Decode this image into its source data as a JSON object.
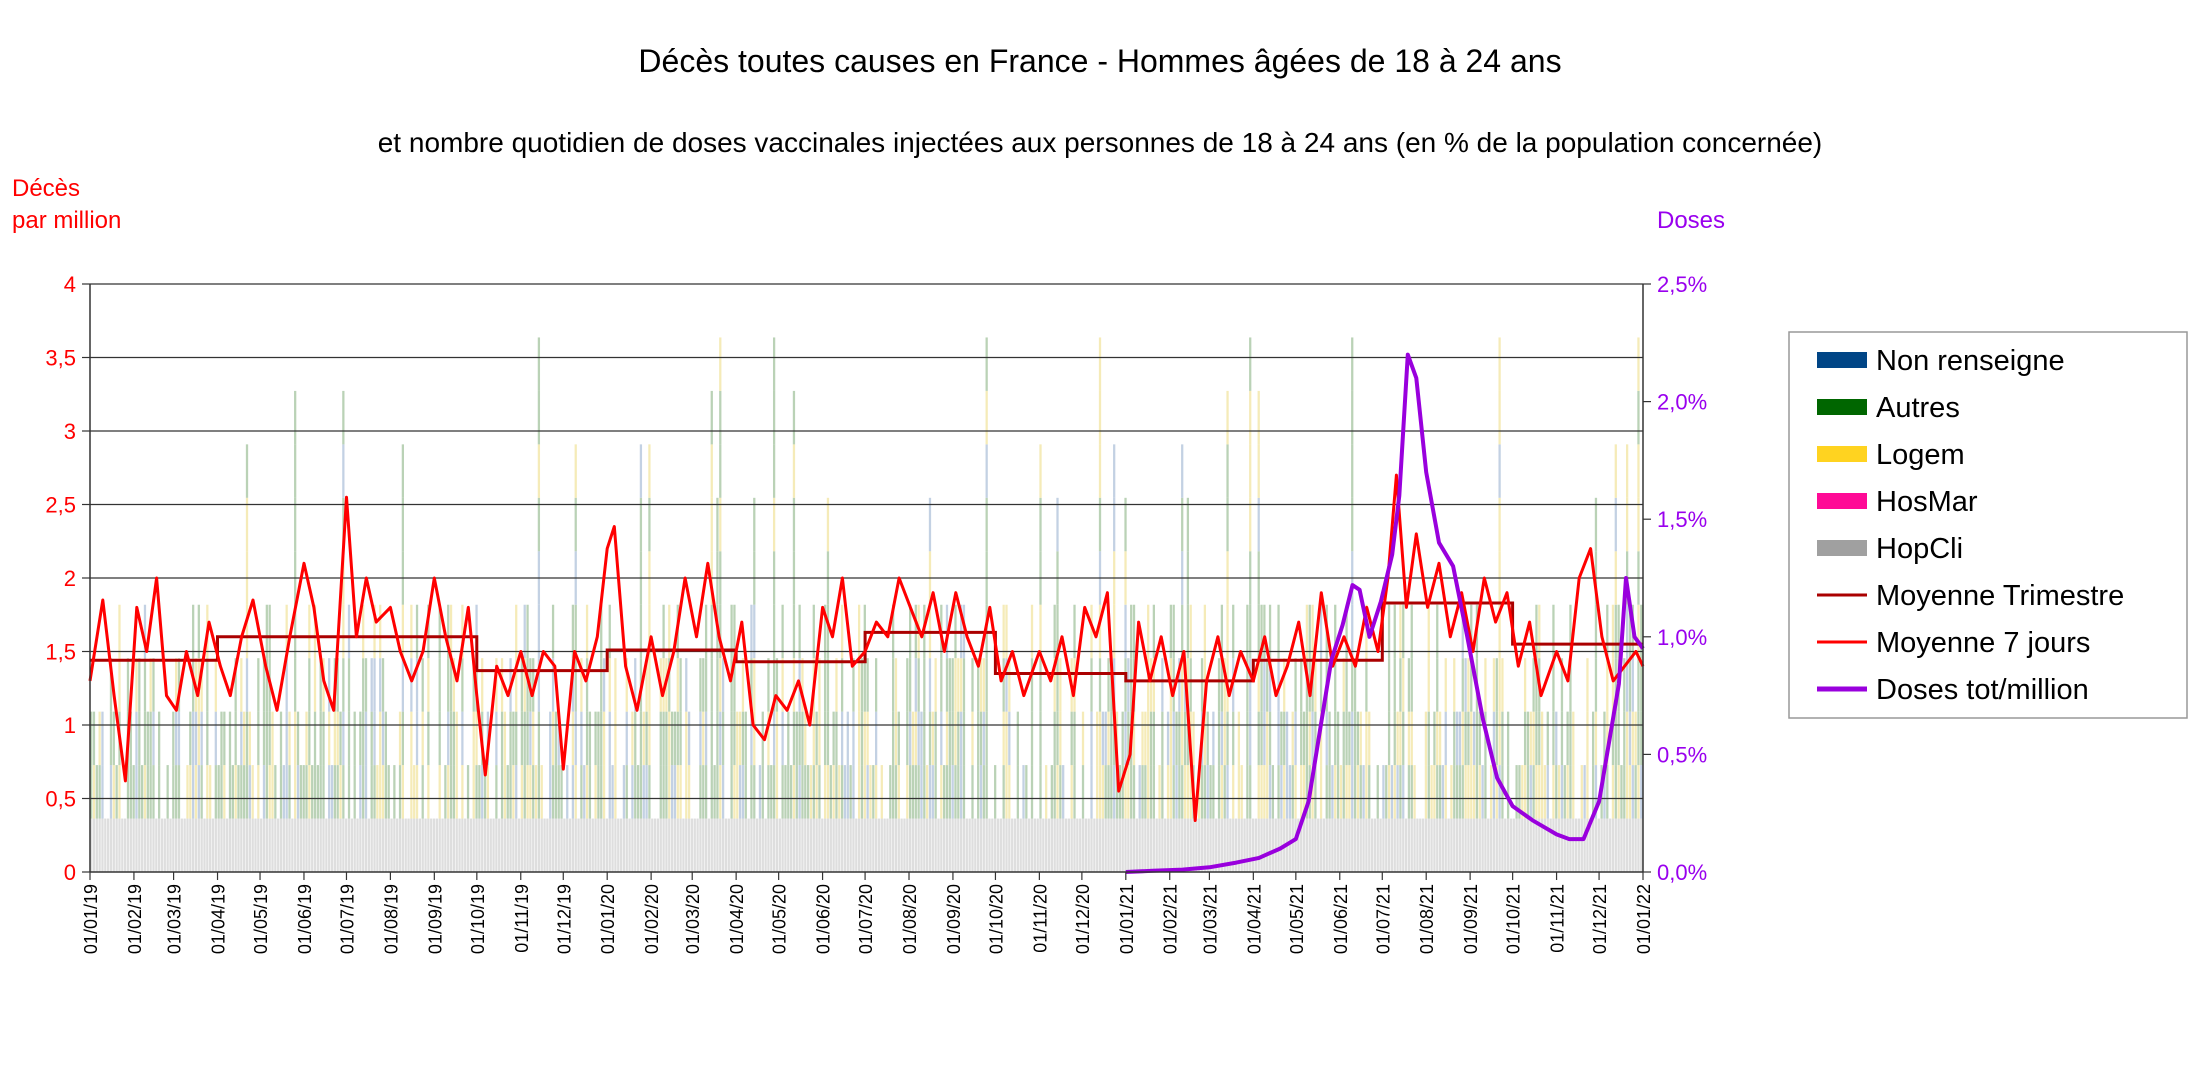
{
  "chart_data": {
    "type": "bar",
    "title": "Décès toutes causes en France - Hommes âgées de 18 à 24 ans",
    "subtitle": "et nombre quotidien de doses vaccinales injectées aux personnes de 18 à 24 ans (en % de la population concernée)",
    "ylabel_left_line1": "Décès",
    "ylabel_left_line2": "par million",
    "ylabel_right": "Doses",
    "x_range": [
      "2019-01-01",
      "2022-01-01"
    ],
    "ylim_left": [
      0,
      4
    ],
    "ylim_right": [
      0,
      2.5
    ],
    "left_ticks": [
      "0",
      "0,5",
      "1",
      "1,5",
      "2",
      "2,5",
      "3",
      "3,5",
      "4"
    ],
    "right_ticks": [
      "0,0%",
      "0,5%",
      "1,0%",
      "1,5%",
      "2,0%",
      "2,5%"
    ],
    "x_ticks": [
      "01/01/19",
      "01/02/19",
      "01/03/19",
      "01/04/19",
      "01/05/19",
      "01/06/19",
      "01/07/19",
      "01/08/19",
      "01/09/19",
      "01/10/19",
      "01/11/19",
      "01/12/19",
      "01/01/20",
      "01/02/20",
      "01/03/20",
      "01/04/20",
      "01/05/20",
      "01/06/20",
      "01/07/20",
      "01/08/20",
      "01/09/20",
      "01/10/20",
      "01/11/20",
      "01/12/20",
      "01/01/21",
      "01/02/21",
      "01/03/21",
      "01/04/21",
      "01/05/21",
      "01/06/21",
      "01/07/21",
      "01/08/21",
      "01/09/21",
      "01/10/21",
      "01/11/21",
      "01/12/21",
      "01/01/22"
    ],
    "grid": true,
    "legend_position": "right",
    "legend": [
      {
        "name": "Non renseigne",
        "kind": "box",
        "color": "#004586"
      },
      {
        "name": "Autres",
        "kind": "box",
        "color": "#006600"
      },
      {
        "name": "Logem",
        "kind": "box",
        "color": "#ffd320"
      },
      {
        "name": "HosMar",
        "kind": "box",
        "color": "#ff0a96"
      },
      {
        "name": "HopCli",
        "kind": "box",
        "color": "#a0a0a0"
      },
      {
        "name": "Moyenne Trimestre",
        "kind": "line",
        "color": "#aa0000"
      },
      {
        "name": "Moyenne 7 jours",
        "kind": "line",
        "color": "#ff0000"
      },
      {
        "name": "Doses tot/million",
        "kind": "line",
        "color": "#9900dd"
      }
    ],
    "quarterly_mean": [
      {
        "start": "2019-01-01",
        "end": "2019-04-01",
        "value": 1.44
      },
      {
        "start": "2019-04-01",
        "end": "2019-07-01",
        "value": 1.6
      },
      {
        "start": "2019-07-01",
        "end": "2019-10-01",
        "value": 1.6
      },
      {
        "start": "2019-10-01",
        "end": "2020-01-01",
        "value": 1.37
      },
      {
        "start": "2020-01-01",
        "end": "2020-04-01",
        "value": 1.51
      },
      {
        "start": "2020-04-01",
        "end": "2020-07-01",
        "value": 1.43
      },
      {
        "start": "2020-07-01",
        "end": "2020-10-01",
        "value": 1.63
      },
      {
        "start": "2020-10-01",
        "end": "2021-01-01",
        "value": 1.35
      },
      {
        "start": "2021-01-01",
        "end": "2021-04-01",
        "value": 1.3
      },
      {
        "start": "2021-04-01",
        "end": "2021-07-01",
        "value": 1.44
      },
      {
        "start": "2021-07-01",
        "end": "2021-10-01",
        "value": 1.83
      },
      {
        "start": "2021-10-01",
        "end": "2022-01-01",
        "value": 1.55
      }
    ],
    "rolling_7day": [
      [
        "2019-01-01",
        1.3
      ],
      [
        "2019-01-10",
        1.85
      ],
      [
        "2019-01-18",
        1.2
      ],
      [
        "2019-01-26",
        0.62
      ],
      [
        "2019-02-03",
        1.8
      ],
      [
        "2019-02-10",
        1.5
      ],
      [
        "2019-02-17",
        2.0
      ],
      [
        "2019-02-24",
        1.2
      ],
      [
        "2019-03-03",
        1.1
      ],
      [
        "2019-03-10",
        1.5
      ],
      [
        "2019-03-18",
        1.2
      ],
      [
        "2019-03-26",
        1.7
      ],
      [
        "2019-04-03",
        1.4
      ],
      [
        "2019-04-10",
        1.2
      ],
      [
        "2019-04-18",
        1.6
      ],
      [
        "2019-04-26",
        1.85
      ],
      [
        "2019-05-05",
        1.4
      ],
      [
        "2019-05-13",
        1.1
      ],
      [
        "2019-05-22",
        1.6
      ],
      [
        "2019-06-01",
        2.1
      ],
      [
        "2019-06-08",
        1.8
      ],
      [
        "2019-06-15",
        1.3
      ],
      [
        "2019-06-22",
        1.1
      ],
      [
        "2019-07-01",
        2.55
      ],
      [
        "2019-07-08",
        1.6
      ],
      [
        "2019-07-15",
        2.0
      ],
      [
        "2019-07-22",
        1.7
      ],
      [
        "2019-08-01",
        1.8
      ],
      [
        "2019-08-08",
        1.5
      ],
      [
        "2019-08-16",
        1.3
      ],
      [
        "2019-08-24",
        1.5
      ],
      [
        "2019-09-01",
        2.0
      ],
      [
        "2019-09-09",
        1.6
      ],
      [
        "2019-09-17",
        1.3
      ],
      [
        "2019-09-25",
        1.8
      ],
      [
        "2019-10-01",
        1.2
      ],
      [
        "2019-10-07",
        0.66
      ],
      [
        "2019-10-15",
        1.4
      ],
      [
        "2019-10-23",
        1.2
      ],
      [
        "2019-11-01",
        1.5
      ],
      [
        "2019-11-09",
        1.2
      ],
      [
        "2019-11-17",
        1.5
      ],
      [
        "2019-11-25",
        1.4
      ],
      [
        "2019-12-01",
        0.7
      ],
      [
        "2019-12-09",
        1.5
      ],
      [
        "2019-12-17",
        1.3
      ],
      [
        "2019-12-25",
        1.6
      ],
      [
        "2020-01-01",
        2.2
      ],
      [
        "2020-01-06",
        2.35
      ],
      [
        "2020-01-14",
        1.4
      ],
      [
        "2020-01-22",
        1.1
      ],
      [
        "2020-02-01",
        1.6
      ],
      [
        "2020-02-09",
        1.2
      ],
      [
        "2020-02-17",
        1.5
      ],
      [
        "2020-02-25",
        2.0
      ],
      [
        "2020-03-04",
        1.6
      ],
      [
        "2020-03-12",
        2.1
      ],
      [
        "2020-03-20",
        1.6
      ],
      [
        "2020-03-28",
        1.3
      ],
      [
        "2020-04-05",
        1.7
      ],
      [
        "2020-04-13",
        1.0
      ],
      [
        "2020-04-21",
        0.9
      ],
      [
        "2020-04-29",
        1.2
      ],
      [
        "2020-05-07",
        1.1
      ],
      [
        "2020-05-15",
        1.3
      ],
      [
        "2020-05-23",
        1.0
      ],
      [
        "2020-06-01",
        1.8
      ],
      [
        "2020-06-08",
        1.6
      ],
      [
        "2020-06-15",
        2.0
      ],
      [
        "2020-06-22",
        1.4
      ],
      [
        "2020-07-01",
        1.5
      ],
      [
        "2020-07-09",
        1.7
      ],
      [
        "2020-07-17",
        1.6
      ],
      [
        "2020-07-25",
        2.0
      ],
      [
        "2020-08-02",
        1.8
      ],
      [
        "2020-08-10",
        1.6
      ],
      [
        "2020-08-18",
        1.9
      ],
      [
        "2020-08-26",
        1.5
      ],
      [
        "2020-09-03",
        1.9
      ],
      [
        "2020-09-11",
        1.6
      ],
      [
        "2020-09-19",
        1.4
      ],
      [
        "2020-09-27",
        1.8
      ],
      [
        "2020-10-05",
        1.3
      ],
      [
        "2020-10-13",
        1.5
      ],
      [
        "2020-10-21",
        1.2
      ],
      [
        "2020-11-01",
        1.5
      ],
      [
        "2020-11-09",
        1.3
      ],
      [
        "2020-11-17",
        1.6
      ],
      [
        "2020-11-25",
        1.2
      ],
      [
        "2020-12-03",
        1.8
      ],
      [
        "2020-12-11",
        1.6
      ],
      [
        "2020-12-19",
        1.9
      ],
      [
        "2020-12-27",
        0.55
      ],
      [
        "2021-01-04",
        0.8
      ],
      [
        "2021-01-10",
        1.7
      ],
      [
        "2021-01-18",
        1.3
      ],
      [
        "2021-01-26",
        1.6
      ],
      [
        "2021-02-03",
        1.2
      ],
      [
        "2021-02-11",
        1.5
      ],
      [
        "2021-02-19",
        0.35
      ],
      [
        "2021-02-27",
        1.3
      ],
      [
        "2021-03-07",
        1.6
      ],
      [
        "2021-03-15",
        1.2
      ],
      [
        "2021-03-23",
        1.5
      ],
      [
        "2021-04-01",
        1.3
      ],
      [
        "2021-04-09",
        1.6
      ],
      [
        "2021-04-17",
        1.2
      ],
      [
        "2021-04-25",
        1.4
      ],
      [
        "2021-05-03",
        1.7
      ],
      [
        "2021-05-11",
        1.2
      ],
      [
        "2021-05-19",
        1.9
      ],
      [
        "2021-05-27",
        1.4
      ],
      [
        "2021-06-04",
        1.6
      ],
      [
        "2021-06-12",
        1.4
      ],
      [
        "2021-06-20",
        1.8
      ],
      [
        "2021-06-28",
        1.5
      ],
      [
        "2021-07-05",
        2.0
      ],
      [
        "2021-07-11",
        2.7
      ],
      [
        "2021-07-18",
        1.8
      ],
      [
        "2021-07-25",
        2.3
      ],
      [
        "2021-08-02",
        1.8
      ],
      [
        "2021-08-10",
        2.1
      ],
      [
        "2021-08-18",
        1.6
      ],
      [
        "2021-08-26",
        1.9
      ],
      [
        "2021-09-03",
        1.5
      ],
      [
        "2021-09-11",
        2.0
      ],
      [
        "2021-09-19",
        1.7
      ],
      [
        "2021-09-27",
        1.9
      ],
      [
        "2021-10-05",
        1.4
      ],
      [
        "2021-10-13",
        1.7
      ],
      [
        "2021-10-21",
        1.2
      ],
      [
        "2021-11-01",
        1.5
      ],
      [
        "2021-11-09",
        1.3
      ],
      [
        "2021-11-17",
        2.0
      ],
      [
        "2021-11-25",
        2.2
      ],
      [
        "2021-12-03",
        1.6
      ],
      [
        "2021-12-11",
        1.3
      ],
      [
        "2021-12-19",
        1.4
      ],
      [
        "2021-12-27",
        1.5
      ],
      [
        "2022-01-01",
        1.4
      ]
    ],
    "doses_pct": [
      [
        "2021-01-01",
        0.0
      ],
      [
        "2021-01-20",
        0.005
      ],
      [
        "2021-02-10",
        0.01
      ],
      [
        "2021-03-01",
        0.02
      ],
      [
        "2021-03-20",
        0.04
      ],
      [
        "2021-04-05",
        0.06
      ],
      [
        "2021-04-20",
        0.1
      ],
      [
        "2021-05-01",
        0.14
      ],
      [
        "2021-05-10",
        0.3
      ],
      [
        "2021-05-18",
        0.6
      ],
      [
        "2021-05-26",
        0.9
      ],
      [
        "2021-06-03",
        1.05
      ],
      [
        "2021-06-10",
        1.22
      ],
      [
        "2021-06-15",
        1.2
      ],
      [
        "2021-06-22",
        1.0
      ],
      [
        "2021-06-30",
        1.15
      ],
      [
        "2021-07-08",
        1.35
      ],
      [
        "2021-07-13",
        1.6
      ],
      [
        "2021-07-19",
        2.2
      ],
      [
        "2021-07-25",
        2.1
      ],
      [
        "2021-08-01",
        1.7
      ],
      [
        "2021-08-10",
        1.4
      ],
      [
        "2021-08-20",
        1.3
      ],
      [
        "2021-08-30",
        1.0
      ],
      [
        "2021-09-10",
        0.65
      ],
      [
        "2021-09-20",
        0.4
      ],
      [
        "2021-10-01",
        0.28
      ],
      [
        "2021-10-15",
        0.22
      ],
      [
        "2021-11-01",
        0.16
      ],
      [
        "2021-11-10",
        0.14
      ],
      [
        "2021-11-20",
        0.14
      ],
      [
        "2021-12-01",
        0.3
      ],
      [
        "2021-12-08",
        0.55
      ],
      [
        "2021-12-15",
        0.8
      ],
      [
        "2021-12-20",
        1.25
      ],
      [
        "2021-12-26",
        1.0
      ],
      [
        "2022-01-01",
        0.95
      ]
    ]
  }
}
